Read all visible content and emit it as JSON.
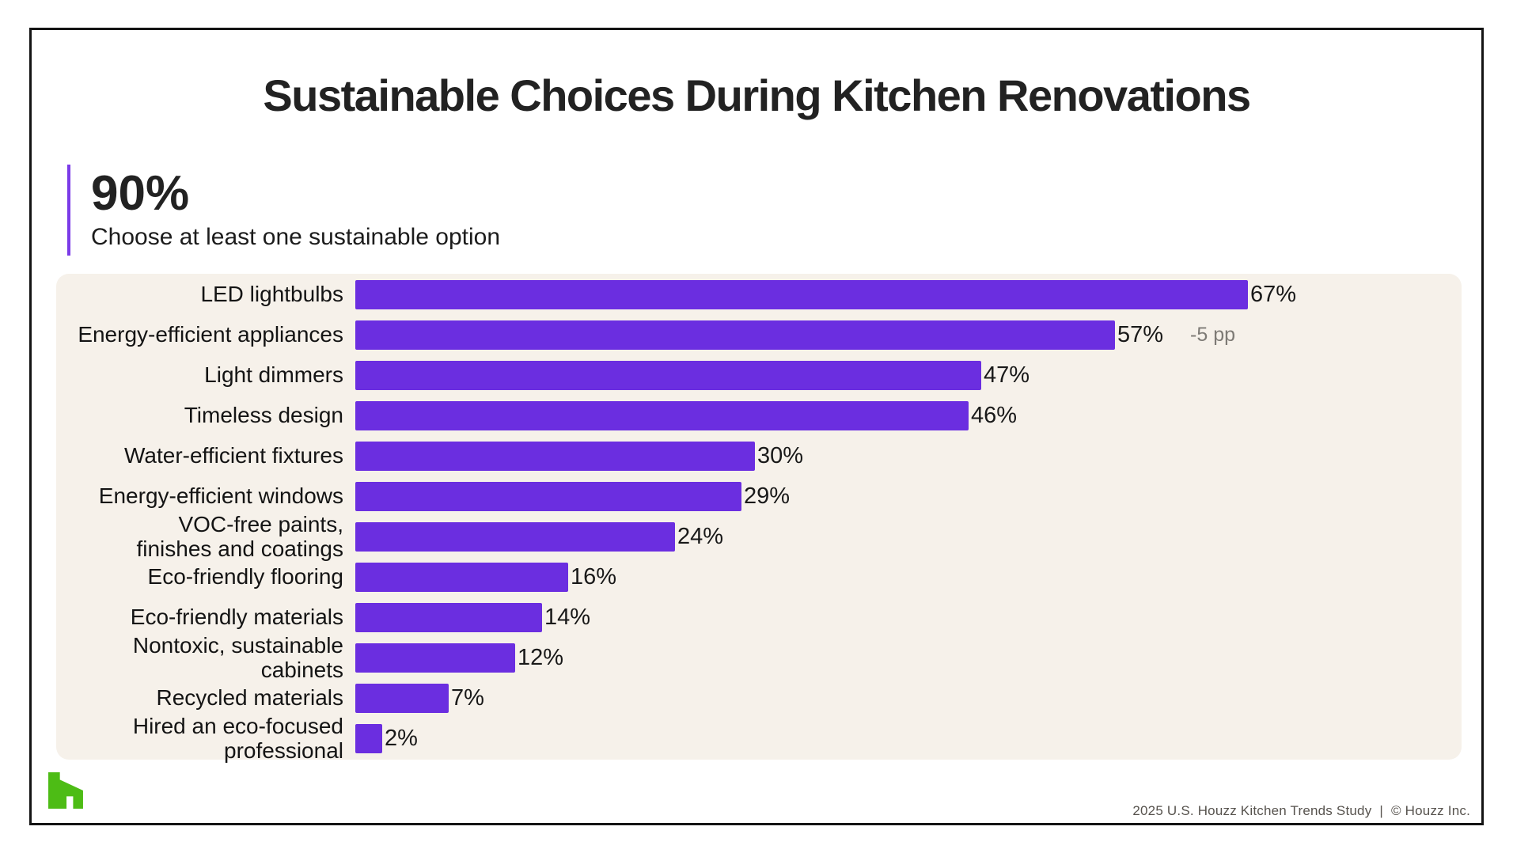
{
  "slide": {
    "title": "Sustainable Choices During Kitchen Renovations",
    "stat": {
      "value": "90%",
      "caption": "Choose at least one sustainable option"
    },
    "footer": {
      "source": "2025 U.S. Houzz Kitchen Trends Study",
      "separator": "|",
      "copyright": "© Houzz Inc."
    },
    "logo": {
      "name": "houzz-logo",
      "color": "#4dbc15"
    }
  },
  "colors": {
    "bar": "#6b2ee0",
    "accent_line": "#7b3be8",
    "panel_background": "#f6f1ea",
    "text": "#1c1c1c",
    "annotation_text": "#7d7a75",
    "footer_text": "#57534e",
    "border": "#141414"
  },
  "chart_data": {
    "type": "bar",
    "orientation": "horizontal",
    "title": "Sustainable Choices During Kitchen Renovations",
    "xlabel": "",
    "ylabel": "",
    "xlim": [
      0,
      82
    ],
    "grid": false,
    "legend": false,
    "categories": [
      "LED lightbulbs",
      "Energy-efficient appliances",
      "Light dimmers",
      "Timeless design",
      "Water-efficient fixtures",
      "Energy-efficient windows",
      "VOC-free paints,\nfinishes and coatings",
      "Eco-friendly flooring",
      "Eco-friendly materials",
      "Nontoxic, sustainable\ncabinets",
      "Recycled materials",
      "Hired an eco-focused\nprofessional"
    ],
    "values": [
      67,
      57,
      47,
      46,
      30,
      29,
      24,
      16,
      14,
      12,
      7,
      2
    ],
    "value_labels": [
      "67%",
      "57%",
      "47%",
      "46%",
      "30%",
      "29%",
      "24%",
      "16%",
      "14%",
      "12%",
      "7%",
      "2%"
    ],
    "annotations": [
      {
        "value_index": 1,
        "category": "Energy-efficient appliances",
        "text": "-5 pp"
      }
    ]
  }
}
